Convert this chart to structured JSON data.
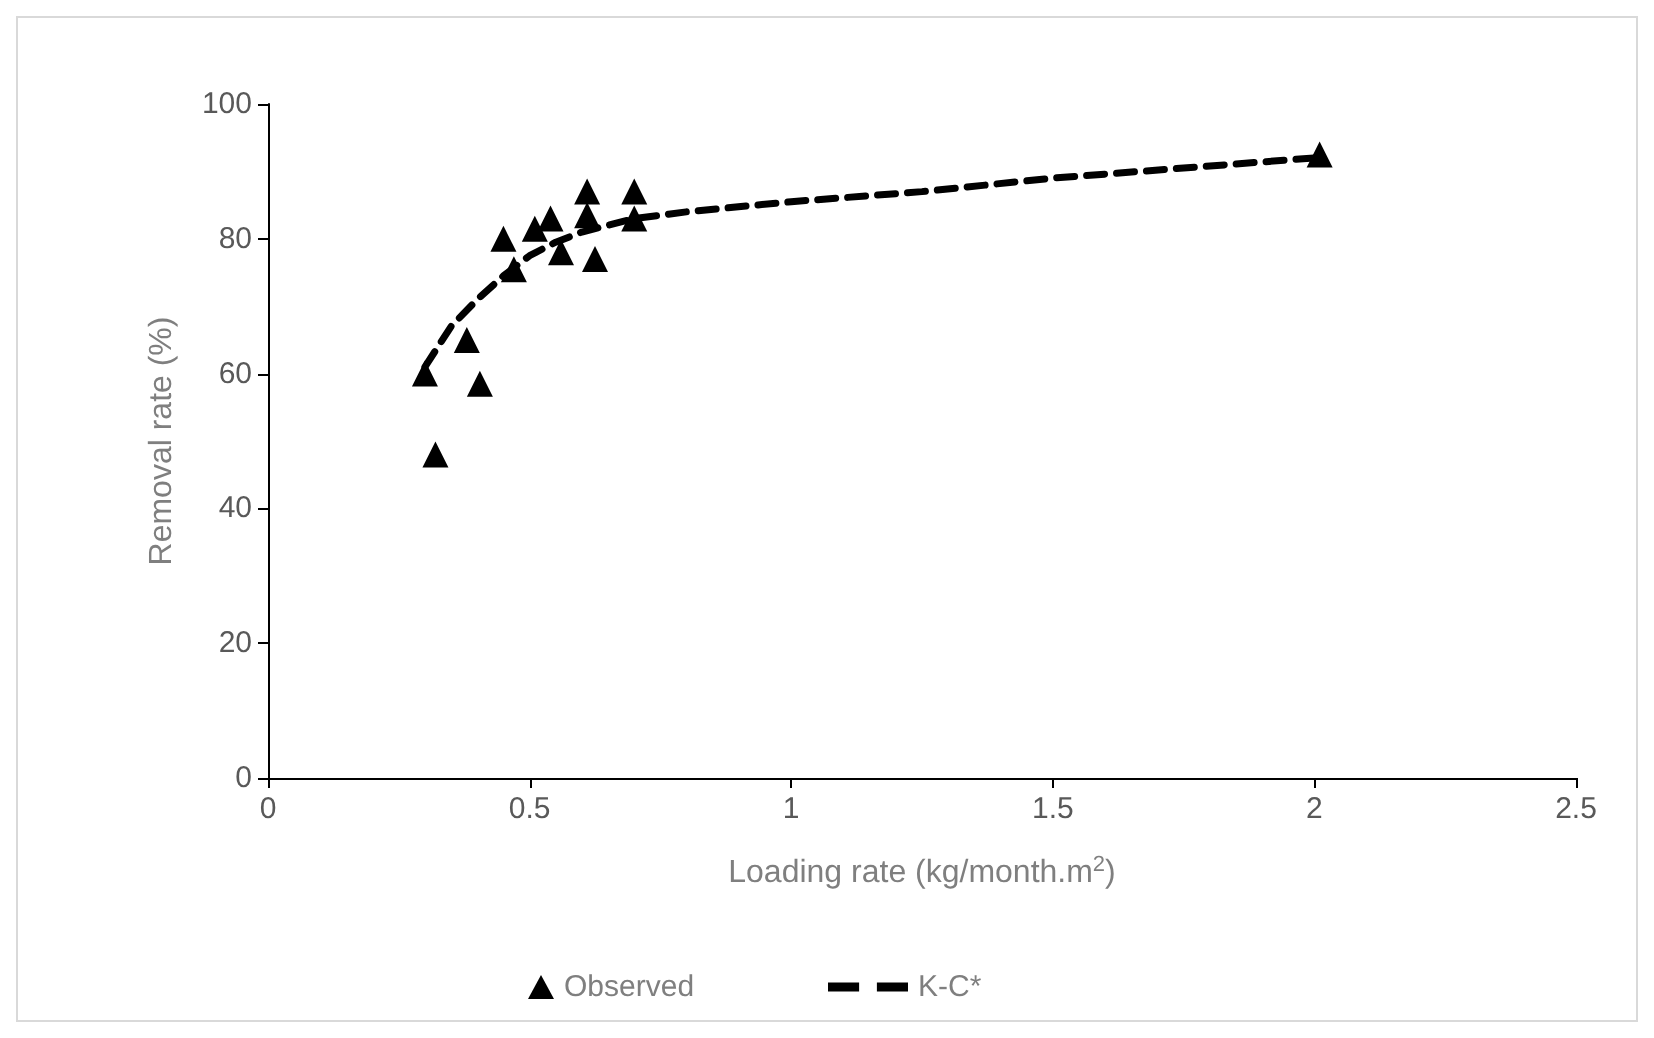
{
  "chart_data": {
    "type": "scatter",
    "xlabel": "Loading rate (kg/month.m$^{2}$)",
    "ylabel": "Removal rate (%)",
    "xlim": [
      0,
      2.5
    ],
    "xticks": [
      0,
      0.5,
      1,
      1.5,
      2,
      2.5
    ],
    "ylim": [
      0,
      100
    ],
    "yticks": [
      0,
      20,
      40,
      60,
      80,
      100
    ],
    "grid": false,
    "legend": "bottom",
    "series": [
      {
        "name": "Observed",
        "marker": "triangle",
        "color": "#000000",
        "x": [
          0.3,
          0.32,
          0.38,
          0.405,
          0.45,
          0.47,
          0.51,
          0.54,
          0.56,
          0.61,
          0.61,
          0.625,
          0.7,
          0.7,
          2.01
        ],
        "values": [
          60,
          48,
          65,
          58.5,
          80,
          75.5,
          81.5,
          83,
          78,
          87,
          83.5,
          77,
          87,
          83,
          92.5
        ]
      },
      {
        "name": "K-C*",
        "type": "line",
        "line_style": "dashed",
        "color": "#000000",
        "x": [
          0.3,
          0.35,
          0.4,
          0.45,
          0.5,
          0.55,
          0.6,
          0.7,
          0.8,
          1.0,
          1.25,
          1.5,
          1.75,
          2.0
        ],
        "values": [
          61,
          67,
          71,
          74.5,
          77.5,
          79.5,
          81,
          83,
          84,
          85.5,
          87,
          89,
          90.5,
          92
        ]
      }
    ]
  }
}
